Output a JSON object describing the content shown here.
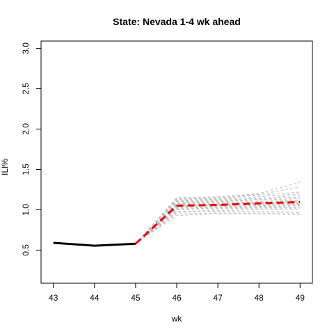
{
  "chart_data": {
    "type": "line",
    "title": "State: Nevada 1-4 wk ahead",
    "xlabel": "wk",
    "ylabel": "ILI%",
    "x_ticks": [
      "43",
      "44",
      "45",
      "46",
      "47",
      "48",
      "49"
    ],
    "y_ticks": [
      "0.5",
      "1.0",
      "1.5",
      "2.0",
      "2.5",
      "3.0"
    ],
    "xlim": [
      42.7,
      49.3
    ],
    "ylim": [
      0.09,
      3.09
    ],
    "grid": false,
    "legend": "none",
    "series": [
      {
        "role": "observed",
        "color": "#000000",
        "style": "solid",
        "points": [
          [
            43,
            0.59
          ],
          [
            44,
            0.555
          ],
          [
            45,
            0.58
          ]
        ]
      },
      {
        "role": "forecast-median",
        "color": "#ee0000",
        "style": "dashed",
        "points": [
          [
            45,
            0.58
          ],
          [
            46,
            1.05
          ],
          [
            47,
            1.06
          ],
          [
            48,
            1.08
          ],
          [
            49,
            1.095
          ]
        ]
      }
    ],
    "ensemble": {
      "color": "#bebebe",
      "start": [
        45,
        0.58
      ],
      "members": [
        [
          0.93,
          0.95,
          0.95,
          0.94
        ],
        [
          0.95,
          0.96,
          0.96,
          0.96
        ],
        [
          0.97,
          0.98,
          0.98,
          0.97
        ],
        [
          0.98,
          0.99,
          1.0,
          1.0
        ],
        [
          1.0,
          1.01,
          1.02,
          1.02
        ],
        [
          1.01,
          1.02,
          1.03,
          1.03
        ],
        [
          1.02,
          1.03,
          1.04,
          1.05
        ],
        [
          1.03,
          1.04,
          1.05,
          1.06
        ],
        [
          1.04,
          1.05,
          1.06,
          1.07
        ],
        [
          1.05,
          1.06,
          1.07,
          1.08
        ],
        [
          1.06,
          1.07,
          1.08,
          1.09
        ],
        [
          1.07,
          1.08,
          1.09,
          1.11
        ],
        [
          1.08,
          1.09,
          1.1,
          1.12
        ],
        [
          1.09,
          1.1,
          1.12,
          1.14
        ],
        [
          1.1,
          1.11,
          1.13,
          1.16
        ],
        [
          1.11,
          1.12,
          1.14,
          1.18
        ],
        [
          1.12,
          1.13,
          1.16,
          1.2
        ],
        [
          1.13,
          1.14,
          1.18,
          1.22
        ],
        [
          1.14,
          1.15,
          1.19,
          1.28
        ],
        [
          1.15,
          1.16,
          1.2,
          1.34
        ]
      ]
    }
  }
}
